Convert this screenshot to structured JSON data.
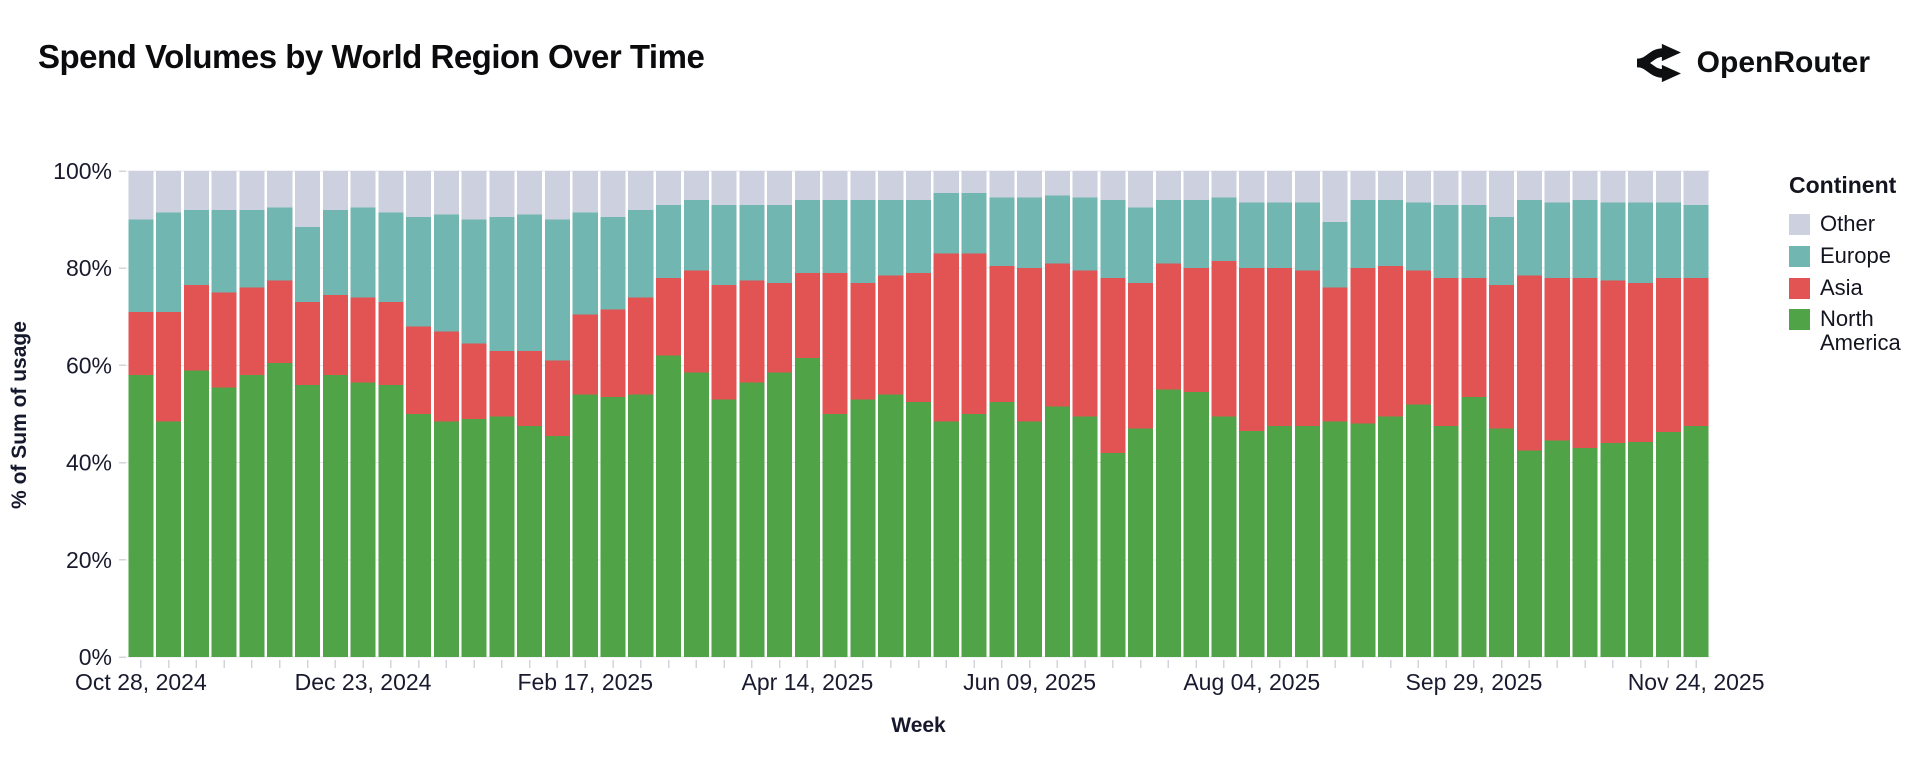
{
  "header": {
    "title": "Spend Volumes by World Region Over Time",
    "brand": "OpenRouter"
  },
  "chart": {
    "y_axis": {
      "title": "% of Sum of usage",
      "ticks": [
        "0%",
        "20%",
        "40%",
        "60%",
        "80%",
        "100%"
      ]
    },
    "x_axis": {
      "title": "Week",
      "tick_labels": [
        "Oct 28, 2024",
        "Dec 23, 2024",
        "Feb 17, 2025",
        "Apr 14, 2025",
        "Jun 09, 2025",
        "Aug 04, 2025",
        "Sep 29, 2025",
        "Nov 24, 2025"
      ],
      "tick_every_n_bars": 8
    },
    "legend": {
      "title": "Continent",
      "items": [
        {
          "label": "Other",
          "color": "#cdd1df"
        },
        {
          "label": "Europe",
          "color": "#71b6b1"
        },
        {
          "label": "Asia",
          "color": "#e15453"
        },
        {
          "label": "North America",
          "color": "#50a347"
        }
      ]
    },
    "colors": {
      "grid": "#e4e6ef",
      "tick": "#d3d5de",
      "axis_text": "#191a2e"
    }
  },
  "chart_data": {
    "type": "bar",
    "stacked": true,
    "normalized": true,
    "title": "Spend Volumes by World Region Over Time",
    "xlabel": "Week",
    "ylabel": "% of Sum of usage",
    "ylim": [
      0,
      100
    ],
    "grid": true,
    "legend_position": "right",
    "categories": [
      "2024-10-28",
      "2024-11-04",
      "2024-11-11",
      "2024-11-18",
      "2024-11-25",
      "2024-12-02",
      "2024-12-09",
      "2024-12-16",
      "2024-12-23",
      "2024-12-30",
      "2025-01-06",
      "2025-01-13",
      "2025-01-20",
      "2025-01-27",
      "2025-02-03",
      "2025-02-10",
      "2025-02-17",
      "2025-02-24",
      "2025-03-03",
      "2025-03-10",
      "2025-03-17",
      "2025-03-24",
      "2025-03-31",
      "2025-04-07",
      "2025-04-14",
      "2025-04-21",
      "2025-04-28",
      "2025-05-05",
      "2025-05-12",
      "2025-05-19",
      "2025-05-26",
      "2025-06-02",
      "2025-06-09",
      "2025-06-16",
      "2025-06-23",
      "2025-06-30",
      "2025-07-07",
      "2025-07-14",
      "2025-07-21",
      "2025-07-28",
      "2025-08-04",
      "2025-08-11",
      "2025-08-18",
      "2025-08-25",
      "2025-09-01",
      "2025-09-08",
      "2025-09-15",
      "2025-09-22",
      "2025-09-29",
      "2025-10-06",
      "2025-10-13",
      "2025-10-20",
      "2025-10-27",
      "2025-11-03",
      "2025-11-10",
      "2025-11-17",
      "2025-11-24"
    ],
    "series": [
      {
        "name": "North America",
        "color": "#50a347",
        "values": [
          58,
          48.5,
          59,
          55.5,
          58,
          60.5,
          56,
          58,
          56.5,
          56,
          50,
          48.5,
          49,
          49.5,
          47.5,
          45.5,
          54,
          53.5,
          54,
          62,
          58.5,
          53,
          56.5,
          58.5,
          61.5,
          50,
          53,
          54,
          52.5,
          48.5,
          50,
          52.5,
          48.5,
          51.5,
          49.5,
          42,
          47,
          55,
          54.5,
          49.5,
          46.5,
          47.5,
          47.5,
          48.5,
          48,
          49.5,
          52,
          47.5,
          53.5,
          47,
          42.5,
          44.5,
          43,
          44,
          44.2,
          46.3,
          47.5
        ]
      },
      {
        "name": "Asia",
        "color": "#e15453",
        "values": [
          13,
          22.5,
          17.5,
          19.5,
          18,
          17,
          17,
          16.5,
          17.5,
          17,
          18,
          18.5,
          15.5,
          13.5,
          15.5,
          15.5,
          16.5,
          18,
          20,
          16,
          21,
          23.5,
          21,
          18.5,
          17.5,
          29,
          24,
          24.5,
          26.5,
          34.5,
          33,
          28,
          31.5,
          29.5,
          30,
          36,
          30,
          26,
          25.5,
          32,
          33.5,
          32.5,
          32,
          27.5,
          32,
          31,
          27.5,
          30.5,
          24.5,
          29.5,
          36,
          33.5,
          35,
          33.5,
          32.8,
          31.7,
          30.5
        ]
      },
      {
        "name": "Europe",
        "color": "#71b6b1",
        "values": [
          19,
          20.5,
          15.5,
          17,
          16,
          15,
          15.5,
          17.5,
          18.5,
          18.5,
          22.5,
          24,
          25.5,
          27.5,
          28,
          29,
          21,
          19,
          18,
          15,
          14.5,
          16.5,
          15.5,
          16,
          15,
          15,
          17,
          15.5,
          15,
          12.5,
          12.5,
          14,
          14.5,
          14,
          15,
          16,
          15.5,
          13,
          14,
          13,
          13.5,
          13.5,
          14,
          13.5,
          14,
          13.5,
          14,
          15,
          15,
          14,
          15.5,
          15.5,
          16,
          16,
          16.5,
          15.5,
          15
        ]
      },
      {
        "name": "Other",
        "color": "#cdd1df",
        "values": [
          10,
          8.5,
          8,
          8,
          8,
          7.5,
          11.5,
          8,
          7.5,
          8.5,
          9.5,
          9,
          10,
          9.5,
          9,
          10,
          8.5,
          9.5,
          8,
          7,
          6,
          7,
          7,
          7,
          6,
          6,
          6,
          6,
          6,
          4.5,
          4.5,
          5.5,
          5.5,
          5,
          5.5,
          6,
          7.5,
          6,
          6,
          5.5,
          6.5,
          6.5,
          6.5,
          10.5,
          6,
          6,
          6.5,
          7,
          7,
          9.5,
          6,
          6.5,
          6,
          6.5,
          6.5,
          6.5,
          7
        ]
      }
    ]
  }
}
